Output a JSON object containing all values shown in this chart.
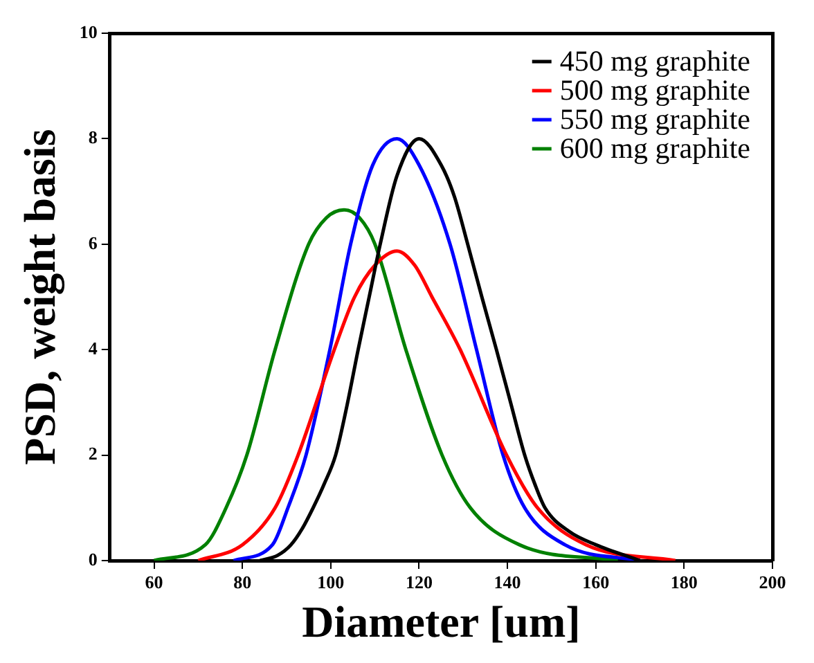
{
  "chart_data": {
    "type": "line",
    "xlabel": "Diameter [um]",
    "ylabel": "PSD, weight basis",
    "xlim": [
      50,
      200
    ],
    "ylim": [
      0,
      10
    ],
    "xticks": [
      60,
      80,
      100,
      120,
      140,
      160,
      180,
      200
    ],
    "yticks": [
      0,
      2,
      4,
      6,
      8,
      10
    ],
    "legend": "top right",
    "grid": false,
    "marker": "none",
    "line_style": "solid",
    "series": [
      {
        "name": "450 mg graphite",
        "color": "#000000",
        "x": [
          84,
          88,
          91,
          93.5,
          96,
          98.5,
          101.1,
          103.7,
          106.2,
          108.7,
          111.2,
          115,
          120,
          125,
          128,
          131,
          134.2,
          137.5,
          140.7,
          143.9,
          146.2,
          148.5,
          154,
          160,
          170
        ],
        "values": [
          0,
          0.1,
          0.3,
          0.6,
          1,
          1.45,
          2,
          2.95,
          4,
          5,
          6,
          7.3,
          8,
          7.5,
          6.9,
          6,
          5,
          4,
          3,
          2,
          1.45,
          1,
          0.55,
          0.3,
          0
        ]
      },
      {
        "name": "500 mg graphite",
        "color": "#ff0000",
        "x": [
          70,
          80,
          87.4,
          92.6,
          100.8,
          105.4,
          110,
          115,
          119,
          122.9,
          129.3,
          139.8,
          146.8,
          157.8,
          178
        ],
        "values": [
          0,
          0.3,
          1,
          2,
          4,
          5,
          5.6,
          5.87,
          5.6,
          5,
          4,
          2,
          1,
          0.3,
          0
        ]
      },
      {
        "name": "550 mg graphite",
        "color": "#0000ff",
        "x": [
          78,
          86.8,
          90.3,
          94.4,
          99.8,
          104.5,
          109.5,
          115,
          120,
          127,
          133,
          139,
          143.9,
          153,
          170
        ],
        "values": [
          0,
          0.3,
          1,
          2,
          4,
          6,
          7.5,
          8,
          7.5,
          6,
          4,
          2,
          1,
          0.3,
          0
        ]
      },
      {
        "name": "600 mg graphite",
        "color": "#008000",
        "x": [
          60,
          71.6,
          76.3,
          81,
          87.4,
          95,
          99,
          103,
          106.5,
          110,
          117,
          125.2,
          131.6,
          142.7,
          165
        ],
        "values": [
          0,
          0.3,
          1,
          2,
          4,
          6,
          6.5,
          6.65,
          6.5,
          6,
          4,
          2,
          1,
          0.3,
          0
        ]
      }
    ]
  }
}
